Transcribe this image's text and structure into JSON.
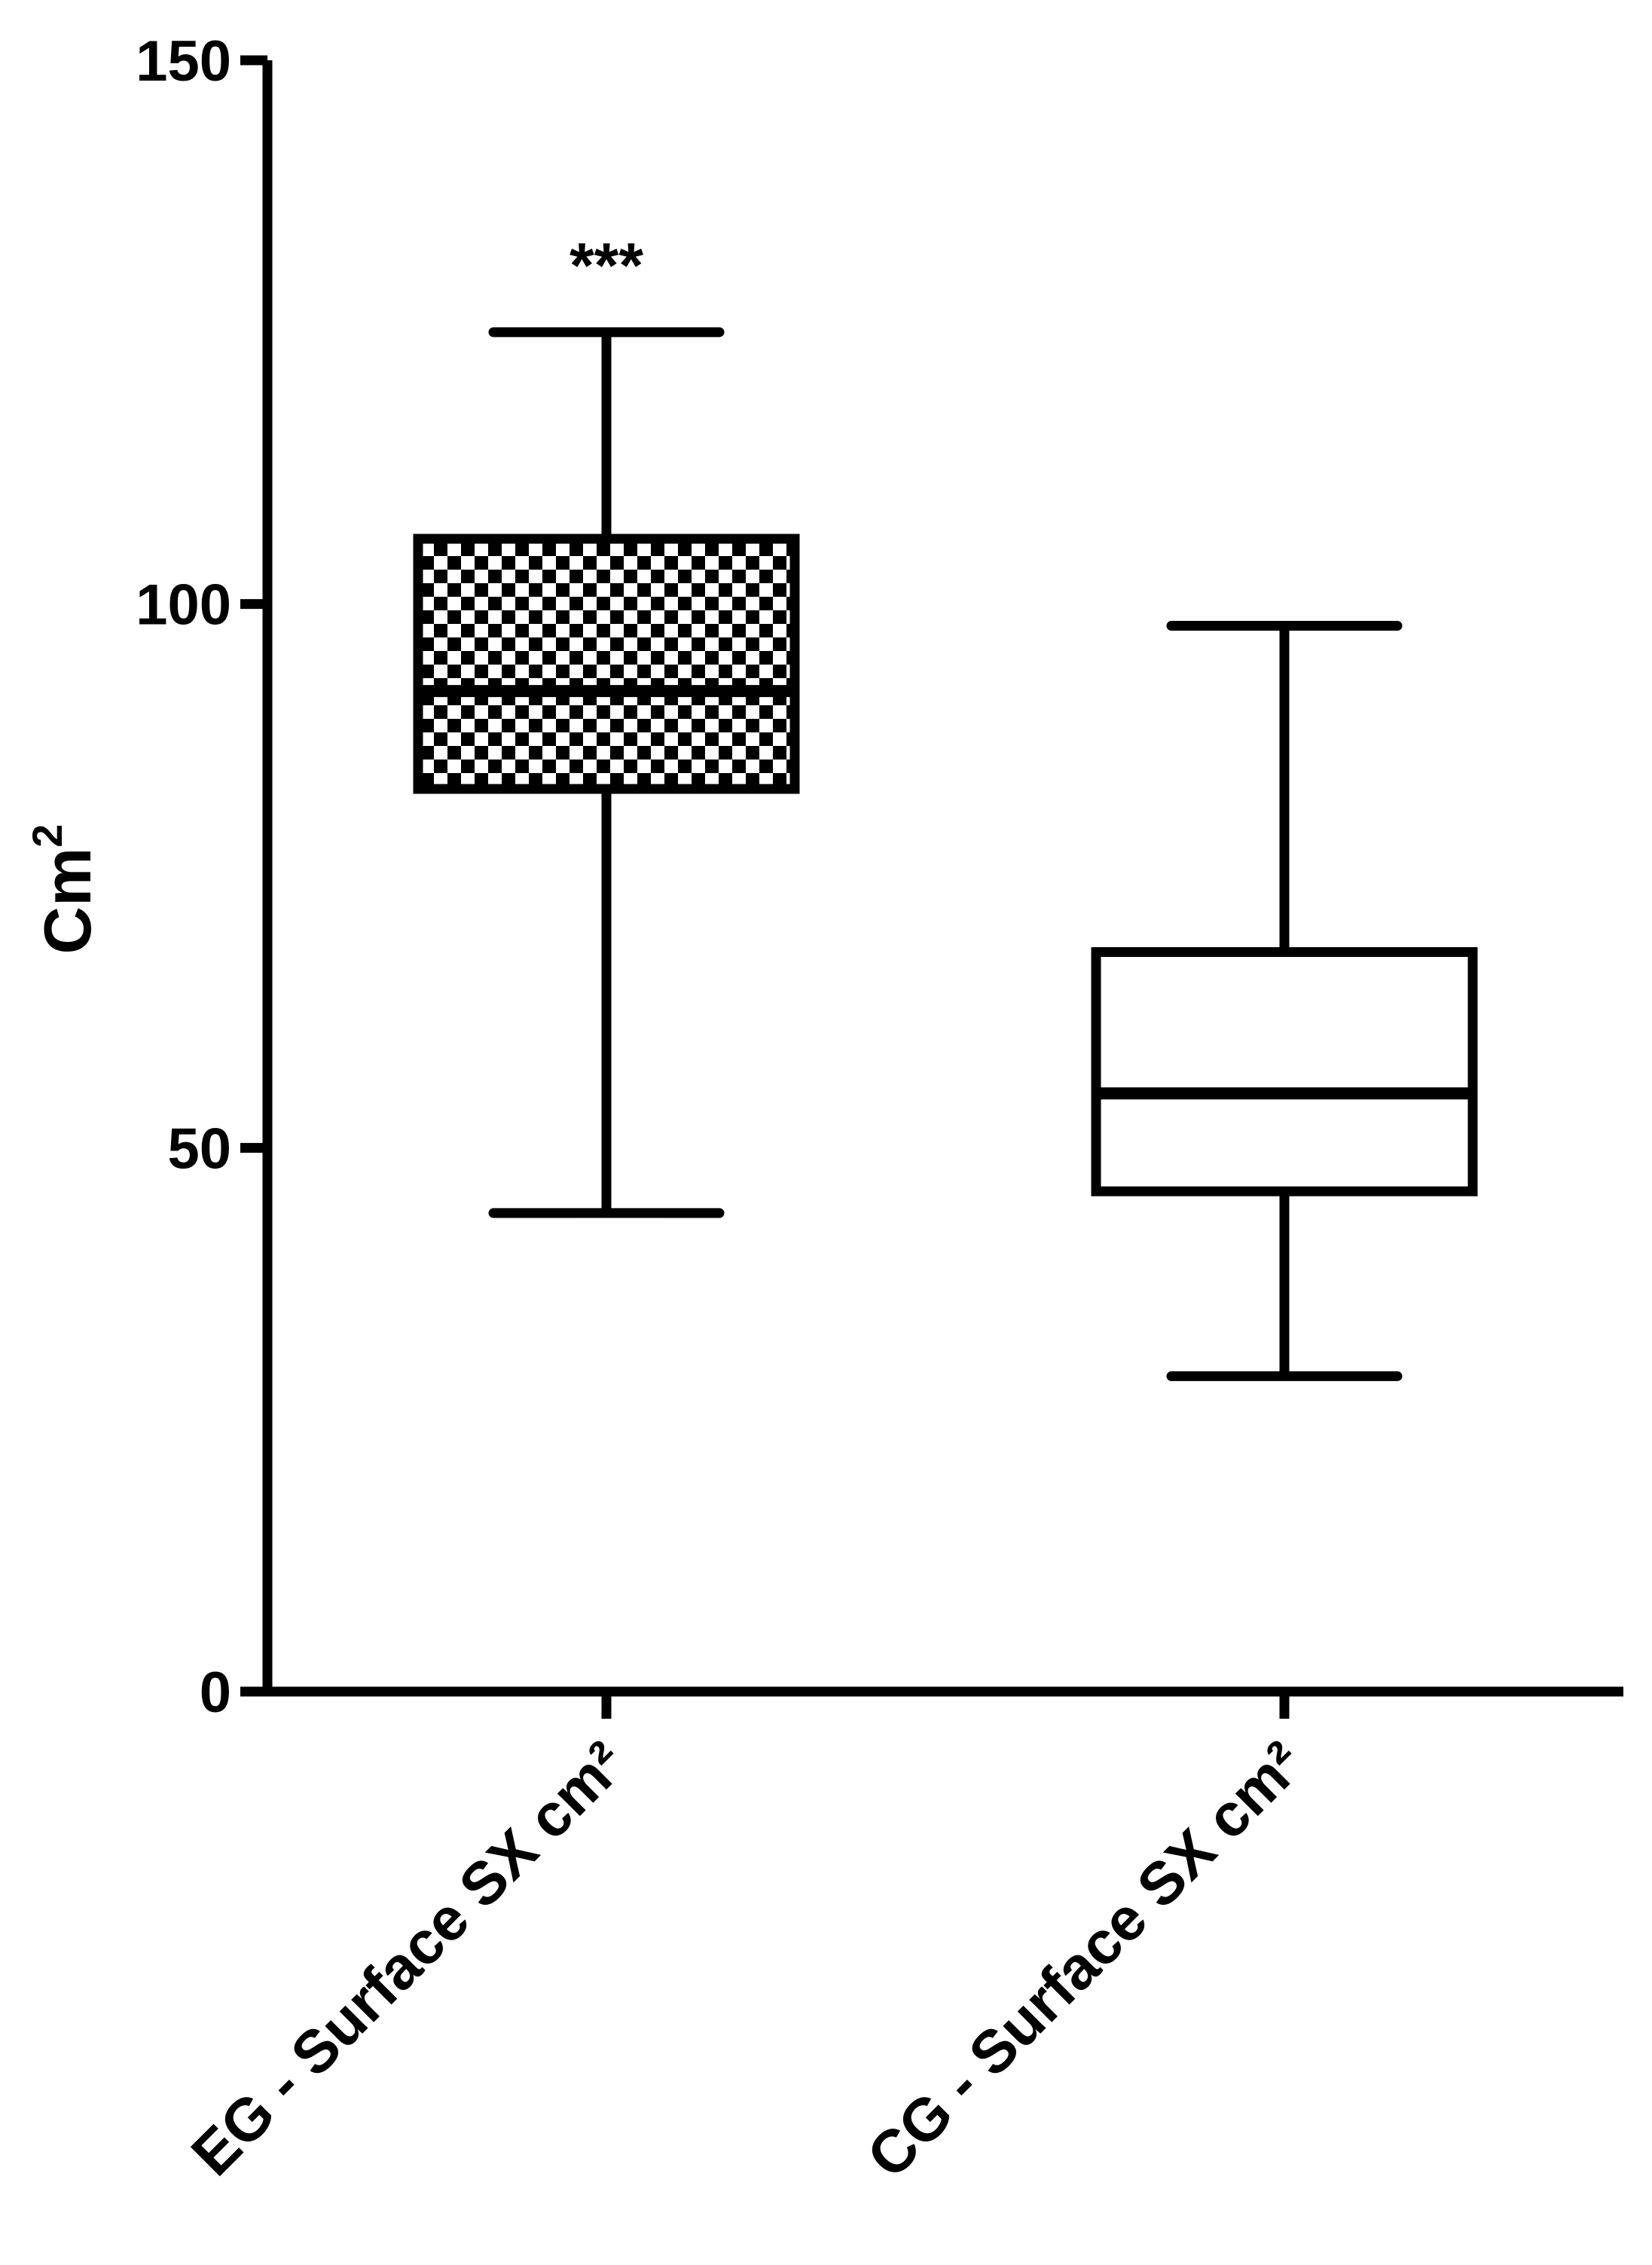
{
  "chart_data": {
    "type": "box",
    "ylabel": "Cm",
    "ylabel_superscript": "2",
    "ylim": [
      0,
      150
    ],
    "yticks": [
      0,
      50,
      100,
      150
    ],
    "ytick_labels": [
      "0",
      "50",
      "100",
      "150"
    ],
    "grid": false,
    "categories": [
      "EG - Surface SX cm²",
      "CG - Surface SX cm²"
    ],
    "boxes": [
      {
        "category": "EG - Surface SX cm²",
        "whisker_low": 44,
        "q1": 83,
        "median": 92,
        "q3": 106,
        "whisker_high": 125,
        "fill": "checkered",
        "annotation": "***"
      },
      {
        "category": "CG - Surface SX cm²",
        "whisker_low": 29,
        "q1": 46,
        "median": 55,
        "q3": 68,
        "whisker_high": 98,
        "fill": "none",
        "annotation": ""
      }
    ],
    "colors": {
      "ink": "#000000",
      "background": "#ffffff"
    }
  }
}
